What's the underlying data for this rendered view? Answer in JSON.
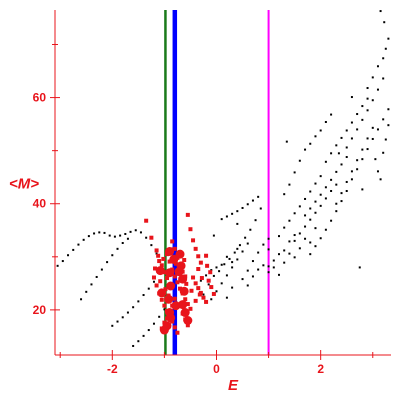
{
  "chart_data": {
    "type": "scatter",
    "xlabel": "E",
    "ylabel": "<M>",
    "xlim": [
      -3.1,
      3.35
    ],
    "ylim": [
      11.5,
      76.5
    ],
    "xticks": [
      -2,
      0,
      2
    ],
    "xtick_labels": [
      "-2",
      "0",
      "2"
    ],
    "yticks": [
      20,
      40,
      60
    ],
    "ytick_labels": [
      "20",
      "40",
      "60"
    ],
    "grid": false,
    "colors": {
      "axes": "#e8141b",
      "black_points": "#000000",
      "red_points": "#e8141b"
    },
    "vertical_lines": [
      {
        "x": -0.98,
        "color": "#1a7a1a"
      },
      {
        "x": -0.8,
        "color": "#0000ff"
      },
      {
        "x": 1.0,
        "color": "#ff00ff"
      }
    ],
    "series": [
      {
        "color": "#000000",
        "marker": "dot",
        "points": [
          [
            -3.05,
            28.3
          ],
          [
            -2.95,
            29.2
          ],
          [
            -2.85,
            30.3
          ],
          [
            -2.75,
            31.3
          ],
          [
            -2.65,
            32.3
          ],
          [
            -2.55,
            33.2
          ],
          [
            -2.45,
            33.9
          ],
          [
            -2.35,
            34.4
          ],
          [
            -2.25,
            34.6
          ],
          [
            -2.15,
            34.5
          ],
          [
            -2.05,
            34.0
          ],
          [
            -1.95,
            33.8
          ],
          [
            -1.85,
            34.0
          ],
          [
            -1.75,
            34.3
          ],
          [
            -1.65,
            34.7
          ],
          [
            -1.55,
            35.0
          ],
          [
            -1.45,
            34.6
          ],
          [
            -1.35,
            33.6
          ],
          [
            -1.25,
            32.2
          ],
          [
            -1.15,
            30.6
          ],
          [
            -2.6,
            22.0
          ],
          [
            -2.5,
            23.4
          ],
          [
            -2.4,
            24.8
          ],
          [
            -2.3,
            26.2
          ],
          [
            -2.2,
            27.6
          ],
          [
            -2.1,
            29.0
          ],
          [
            -2.0,
            30.3
          ],
          [
            -1.9,
            31.5
          ],
          [
            -1.8,
            32.6
          ],
          [
            -1.7,
            33.4
          ],
          [
            -2.0,
            17.0
          ],
          [
            -1.9,
            17.8
          ],
          [
            -1.8,
            18.6
          ],
          [
            -1.7,
            19.5
          ],
          [
            -1.6,
            20.5
          ],
          [
            -1.5,
            21.6
          ],
          [
            -1.4,
            22.8
          ],
          [
            -1.3,
            24.0
          ],
          [
            -1.2,
            25.3
          ],
          [
            -1.6,
            13.2
          ],
          [
            -1.5,
            14.1
          ],
          [
            -1.4,
            15.1
          ],
          [
            -1.3,
            16.2
          ],
          [
            -1.2,
            17.4
          ],
          [
            -1.1,
            18.7
          ],
          [
            -1.0,
            20.1
          ],
          [
            -0.25,
            22.9
          ],
          [
            -0.15,
            24.8
          ],
          [
            -0.05,
            26.4
          ],
          [
            0.05,
            27.3
          ],
          [
            0.15,
            28.6
          ],
          [
            0.25,
            29.6
          ],
          [
            0.35,
            30.8
          ],
          [
            0.45,
            32.2
          ],
          [
            0.55,
            33.6
          ],
          [
            0.65,
            35.1
          ],
          [
            0.75,
            36.9
          ],
          [
            0.85,
            39.1
          ],
          [
            -0.1,
            22.0
          ],
          [
            0.0,
            23.5
          ],
          [
            0.1,
            25.0
          ],
          [
            0.2,
            26.5
          ],
          [
            0.3,
            28.0
          ],
          [
            0.4,
            29.5
          ],
          [
            0.5,
            31.0
          ],
          [
            0.6,
            32.5
          ],
          [
            -0.3,
            25.5
          ],
          [
            -0.2,
            26.5
          ],
          [
            -0.1,
            27.5
          ],
          [
            0.0,
            28.0
          ],
          [
            0.1,
            28.5
          ],
          [
            0.2,
            30.0
          ],
          [
            0.3,
            29.0
          ],
          [
            0.4,
            31.5
          ],
          [
            0.2,
            22.3
          ],
          [
            0.3,
            24.2
          ],
          [
            0.5,
            25.8
          ],
          [
            0.6,
            27.4
          ],
          [
            0.7,
            29.2
          ],
          [
            0.8,
            30.8
          ],
          [
            0.9,
            32.3
          ],
          [
            1.0,
            33.4
          ],
          [
            0.1,
            37.1
          ],
          [
            0.2,
            37.6
          ],
          [
            0.3,
            38.1
          ],
          [
            0.4,
            38.6
          ],
          [
            0.5,
            39.2
          ],
          [
            0.6,
            39.9
          ],
          [
            0.7,
            40.6
          ],
          [
            0.8,
            41.3
          ],
          [
            0.6,
            24.6
          ],
          [
            0.7,
            26.3
          ],
          [
            0.8,
            27.6
          ],
          [
            0.9,
            28.4
          ],
          [
            1.0,
            28.2
          ],
          [
            1.1,
            29.3
          ],
          [
            1.2,
            30.5
          ],
          [
            1.3,
            31.2
          ],
          [
            1.4,
            32.9
          ],
          [
            1.5,
            34.1
          ],
          [
            1.0,
            27.1
          ],
          [
            1.1,
            28.0
          ],
          [
            1.2,
            26.6
          ],
          [
            1.3,
            28.9
          ],
          [
            1.4,
            30.6
          ],
          [
            1.5,
            29.9
          ],
          [
            1.6,
            31.6
          ],
          [
            1.7,
            33.4
          ],
          [
            1.8,
            32.7
          ],
          [
            1.9,
            35.4
          ],
          [
            1.2,
            33.9
          ],
          [
            1.3,
            35.5
          ],
          [
            1.4,
            36.8
          ],
          [
            1.5,
            38.2
          ],
          [
            1.6,
            39.5
          ],
          [
            1.7,
            40.9
          ],
          [
            1.8,
            42.3
          ],
          [
            1.9,
            43.8
          ],
          [
            2.0,
            45.2
          ],
          [
            1.3,
            41.8
          ],
          [
            1.4,
            43.6
          ],
          [
            1.5,
            45.9
          ],
          [
            1.6,
            48.1
          ],
          [
            1.7,
            50.2
          ],
          [
            1.8,
            51.3
          ],
          [
            1.9,
            52.7
          ],
          [
            2.0,
            53.8
          ],
          [
            2.1,
            55.4
          ],
          [
            2.2,
            56.8
          ],
          [
            1.5,
            33.0
          ],
          [
            1.6,
            34.4
          ],
          [
            1.7,
            35.7
          ],
          [
            1.8,
            37.0
          ],
          [
            1.9,
            38.3
          ],
          [
            2.0,
            39.6
          ],
          [
            2.1,
            41.0
          ],
          [
            2.2,
            42.4
          ],
          [
            2.3,
            43.6
          ],
          [
            1.7,
            37.8
          ],
          [
            1.8,
            39.1
          ],
          [
            1.9,
            40.4
          ],
          [
            2.0,
            41.7
          ],
          [
            2.1,
            43.1
          ],
          [
            2.2,
            44.5
          ],
          [
            2.3,
            46.0
          ],
          [
            2.4,
            47.4
          ],
          [
            2.5,
            48.8
          ],
          [
            1.8,
            30.5
          ],
          [
            1.9,
            32.0
          ],
          [
            2.0,
            33.5
          ],
          [
            2.1,
            35.1
          ],
          [
            2.2,
            36.8
          ],
          [
            2.3,
            38.6
          ],
          [
            2.4,
            40.5
          ],
          [
            2.5,
            42.4
          ],
          [
            2.1,
            47.9
          ],
          [
            2.2,
            49.5
          ],
          [
            2.3,
            51.0
          ],
          [
            2.4,
            52.4
          ],
          [
            2.5,
            53.8
          ],
          [
            2.6,
            55.3
          ],
          [
            2.7,
            56.9
          ],
          [
            2.8,
            58.4
          ],
          [
            2.9,
            59.8
          ],
          [
            2.3,
            40.0
          ],
          [
            2.4,
            42.0
          ],
          [
            2.5,
            44.1
          ],
          [
            2.6,
            46.1
          ],
          [
            2.7,
            48.2
          ],
          [
            2.8,
            50.2
          ],
          [
            2.9,
            52.3
          ],
          [
            3.0,
            54.3
          ],
          [
            2.5,
            50.6
          ],
          [
            2.6,
            52.3
          ],
          [
            2.7,
            54.0
          ],
          [
            2.8,
            55.8
          ],
          [
            2.9,
            57.6
          ],
          [
            3.0,
            59.5
          ],
          [
            3.1,
            61.5
          ],
          [
            3.2,
            63.6
          ],
          [
            2.6,
            44.6
          ],
          [
            2.7,
            46.5
          ],
          [
            2.8,
            48.4
          ],
          [
            2.9,
            50.3
          ],
          [
            3.0,
            52.2
          ],
          [
            3.1,
            54.0
          ],
          [
            3.2,
            55.9
          ],
          [
            3.3,
            57.8
          ],
          [
            2.9,
            61.8
          ],
          [
            3.0,
            63.8
          ],
          [
            3.1,
            65.9
          ],
          [
            3.2,
            67.4
          ],
          [
            3.25,
            69.2
          ],
          [
            3.3,
            71.1
          ],
          [
            3.05,
            48.4
          ],
          [
            3.1,
            46.1
          ],
          [
            3.15,
            44.6
          ],
          [
            3.2,
            49.6
          ],
          [
            3.25,
            52.1
          ],
          [
            3.3,
            54.8
          ],
          [
            2.75,
            28.0
          ],
          [
            1.35,
            51.7
          ],
          [
            3.15,
            76.3
          ],
          [
            3.22,
            74.2
          ],
          [
            2.35,
            49.5
          ],
          [
            2.6,
            60.1
          ],
          [
            2.8,
            42.7
          ],
          [
            1.0,
            31.4
          ],
          [
            0.4,
            36.2
          ],
          [
            -0.05,
            34.0
          ]
        ]
      },
      {
        "color": "#e8141b",
        "marker": "square",
        "points": [
          [
            -1.35,
            36.8
          ],
          [
            -1.25,
            33.6
          ],
          [
            -1.15,
            31.2
          ],
          [
            -1.1,
            29.2
          ],
          [
            -1.05,
            28.4
          ],
          [
            -1.0,
            27.1
          ],
          [
            -0.95,
            26.0
          ],
          [
            -0.9,
            30.8
          ],
          [
            -0.85,
            32.9
          ],
          [
            -0.8,
            31.5
          ],
          [
            -0.75,
            29.8
          ],
          [
            -0.7,
            28.4
          ],
          [
            -0.65,
            27.2
          ],
          [
            -0.6,
            26.3
          ],
          [
            -0.55,
            37.9
          ],
          [
            -0.5,
            35.2
          ],
          [
            -0.45,
            33.1
          ],
          [
            -0.4,
            31.5
          ],
          [
            -0.35,
            30.1
          ],
          [
            -0.3,
            28.9
          ],
          [
            -1.2,
            26.1
          ],
          [
            -1.15,
            24.6
          ],
          [
            -1.1,
            23.1
          ],
          [
            -1.05,
            21.9
          ],
          [
            -1.0,
            20.8
          ],
          [
            -0.95,
            19.8
          ],
          [
            -0.9,
            18.9
          ],
          [
            -0.85,
            17.8
          ],
          [
            -0.8,
            16.7
          ],
          [
            -0.75,
            15.7
          ],
          [
            -0.95,
            30.5
          ],
          [
            -0.9,
            29.1
          ],
          [
            -0.85,
            27.6
          ],
          [
            -0.8,
            26.3
          ],
          [
            -0.75,
            25.2
          ],
          [
            -0.7,
            24.0
          ],
          [
            -0.65,
            23.1
          ],
          [
            -0.6,
            22.0
          ],
          [
            -0.55,
            21.1
          ],
          [
            -0.5,
            20.2
          ],
          [
            -0.45,
            26.1
          ],
          [
            -0.4,
            25.0
          ],
          [
            -0.35,
            24.1
          ],
          [
            -0.3,
            23.2
          ],
          [
            -0.25,
            22.3
          ],
          [
            -0.2,
            21.5
          ],
          [
            -0.15,
            25.5
          ],
          [
            -0.1,
            24.3
          ],
          [
            -0.05,
            23.0
          ],
          [
            -0.2,
            30.2
          ],
          [
            -1.05,
            16.5
          ],
          [
            -1.0,
            17.6
          ],
          [
            -0.95,
            18.4
          ],
          [
            -0.9,
            19.6
          ],
          [
            -0.85,
            20.8
          ],
          [
            -0.8,
            22.1
          ],
          [
            -0.7,
            20.7
          ],
          [
            -0.65,
            19.3
          ],
          [
            -0.6,
            18.2
          ],
          [
            -0.55,
            17.1
          ],
          [
            -0.88,
            31.4
          ],
          [
            -0.82,
            30.0
          ],
          [
            -0.78,
            28.7
          ],
          [
            -0.72,
            26.9
          ],
          [
            -0.68,
            25.5
          ],
          [
            -1.12,
            30.2
          ],
          [
            -1.08,
            25.4
          ],
          [
            -0.98,
            23.9
          ],
          [
            -0.92,
            22.7
          ],
          [
            -0.58,
            24.9
          ],
          [
            -0.35,
            27.7
          ],
          [
            -0.28,
            26.0
          ],
          [
            -0.18,
            28.3
          ],
          [
            -0.12,
            27.1
          ],
          [
            -0.4,
            21.7
          ],
          [
            -0.32,
            22.9
          ],
          [
            -1.18,
            27.8
          ],
          [
            -1.02,
            29.6
          ],
          [
            -0.62,
            29.4
          ],
          [
            -0.48,
            23.6
          ]
        ]
      },
      {
        "color": "#e8141b",
        "marker": "blob",
        "points": [
          [
            -0.9,
            31.0
          ],
          [
            -0.82,
            29.5
          ],
          [
            -0.9,
            27.0
          ],
          [
            -0.88,
            24.5
          ],
          [
            -0.92,
            22.0
          ],
          [
            -0.9,
            19.5
          ],
          [
            -0.88,
            18.5
          ],
          [
            -0.95,
            17.0
          ],
          [
            -0.7,
            30.5
          ],
          [
            -0.68,
            28.3
          ],
          [
            -0.65,
            25.8
          ],
          [
            -0.62,
            23.5
          ],
          [
            -0.65,
            21.0
          ],
          [
            -0.6,
            19.5
          ],
          [
            -0.55,
            18.0
          ],
          [
            -1.08,
            27.4
          ],
          [
            -1.05,
            23.2
          ],
          [
            -1.0,
            16.2
          ],
          [
            -0.78,
            20.8
          ],
          [
            -0.72,
            27.2
          ]
        ]
      }
    ]
  }
}
